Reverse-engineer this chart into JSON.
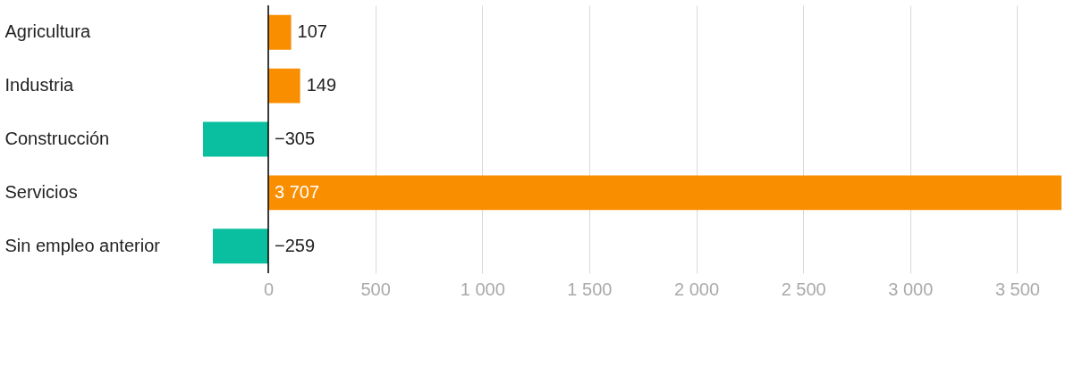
{
  "chart_data": {
    "type": "bar",
    "orientation": "horizontal",
    "categories": [
      "Agricultura",
      "Industria",
      "Construcción",
      "Servicios",
      "Sin empleo anterior"
    ],
    "values": [
      107,
      149,
      -305,
      3707,
      -259
    ],
    "colors": [
      "#f98e00",
      "#f98e00",
      "#0abf9f",
      "#f98e00",
      "#0abf9f"
    ],
    "value_labels": [
      "107",
      "149",
      "−305",
      "3 707",
      "−259"
    ],
    "xlim": [
      -305,
      3707
    ],
    "xticks": [
      0,
      500,
      {
        "value": 1000,
        "label": "1 000"
      },
      {
        "value": 1500,
        "label": "1 500"
      },
      {
        "value": 2000,
        "label": "2 000"
      },
      {
        "value": 2500,
        "label": "2 500"
      },
      {
        "value": 3000,
        "label": "3 000"
      },
      {
        "value": 3500,
        "label": "3 500"
      }
    ],
    "ref_lines": [
      {
        "axis": "x",
        "value": 0,
        "color": "#000000"
      }
    ],
    "grid": "x"
  }
}
